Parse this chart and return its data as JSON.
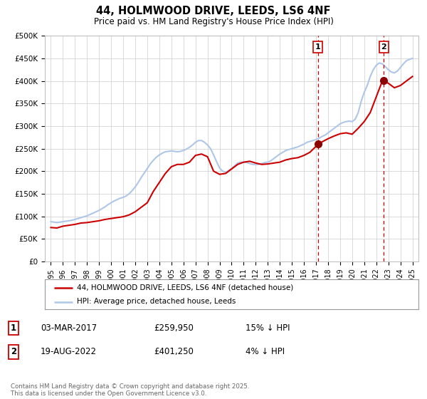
{
  "title": "44, HOLMWOOD DRIVE, LEEDS, LS6 4NF",
  "subtitle": "Price paid vs. HM Land Registry's House Price Index (HPI)",
  "title_fontsize": 10.5,
  "subtitle_fontsize": 8.5,
  "ylim": [
    0,
    500000
  ],
  "yticks": [
    0,
    50000,
    100000,
    150000,
    200000,
    250000,
    300000,
    350000,
    400000,
    450000,
    500000
  ],
  "ytick_labels": [
    "£0",
    "£50K",
    "£100K",
    "£150K",
    "£200K",
    "£250K",
    "£300K",
    "£350K",
    "£400K",
    "£450K",
    "£500K"
  ],
  "xlim_start": 1994.5,
  "xlim_end": 2025.5,
  "xticks": [
    1995,
    1996,
    1997,
    1998,
    1999,
    2000,
    2001,
    2002,
    2003,
    2004,
    2005,
    2006,
    2007,
    2008,
    2009,
    2010,
    2011,
    2012,
    2013,
    2014,
    2015,
    2016,
    2017,
    2018,
    2019,
    2020,
    2021,
    2022,
    2023,
    2024,
    2025
  ],
  "hpi_color": "#aec6e8",
  "price_color": "#cc0000",
  "marker_color": "#8b0000",
  "vline_color": "#cc0000",
  "grid_color": "#cccccc",
  "background_color": "#ffffff",
  "transaction1_date": 2017.16,
  "transaction1_price": 259950,
  "transaction1_label": "1",
  "transaction2_date": 2022.63,
  "transaction2_price": 401250,
  "transaction2_label": "2",
  "legend_line1": "44, HOLMWOOD DRIVE, LEEDS, LS6 4NF (detached house)",
  "legend_line2": "HPI: Average price, detached house, Leeds",
  "table_row1_num": "1",
  "table_row1_date": "03-MAR-2017",
  "table_row1_price": "£259,950",
  "table_row1_hpi": "15% ↓ HPI",
  "table_row2_num": "2",
  "table_row2_date": "19-AUG-2022",
  "table_row2_price": "£401,250",
  "table_row2_hpi": "4% ↓ HPI",
  "footer": "Contains HM Land Registry data © Crown copyright and database right 2025.\nThis data is licensed under the Open Government Licence v3.0.",
  "hpi_data_x": [
    1995.0,
    1995.25,
    1995.5,
    1995.75,
    1996.0,
    1996.25,
    1996.5,
    1996.75,
    1997.0,
    1997.25,
    1997.5,
    1997.75,
    1998.0,
    1998.25,
    1998.5,
    1998.75,
    1999.0,
    1999.25,
    1999.5,
    1999.75,
    2000.0,
    2000.25,
    2000.5,
    2000.75,
    2001.0,
    2001.25,
    2001.5,
    2001.75,
    2002.0,
    2002.25,
    2002.5,
    2002.75,
    2003.0,
    2003.25,
    2003.5,
    2003.75,
    2004.0,
    2004.25,
    2004.5,
    2004.75,
    2005.0,
    2005.25,
    2005.5,
    2005.75,
    2006.0,
    2006.25,
    2006.5,
    2006.75,
    2007.0,
    2007.25,
    2007.5,
    2007.75,
    2008.0,
    2008.25,
    2008.5,
    2008.75,
    2009.0,
    2009.25,
    2009.5,
    2009.75,
    2010.0,
    2010.25,
    2010.5,
    2010.75,
    2011.0,
    2011.25,
    2011.5,
    2011.75,
    2012.0,
    2012.25,
    2012.5,
    2012.75,
    2013.0,
    2013.25,
    2013.5,
    2013.75,
    2014.0,
    2014.25,
    2014.5,
    2014.75,
    2015.0,
    2015.25,
    2015.5,
    2015.75,
    2016.0,
    2016.25,
    2016.5,
    2016.75,
    2017.0,
    2017.25,
    2017.5,
    2017.75,
    2018.0,
    2018.25,
    2018.5,
    2018.75,
    2019.0,
    2019.25,
    2019.5,
    2019.75,
    2020.0,
    2020.25,
    2020.5,
    2020.75,
    2021.0,
    2021.25,
    2021.5,
    2021.75,
    2022.0,
    2022.25,
    2022.5,
    2022.75,
    2023.0,
    2023.25,
    2023.5,
    2023.75,
    2024.0,
    2024.25,
    2024.5,
    2024.75,
    2025.0
  ],
  "hpi_data_y": [
    88000,
    87000,
    86000,
    87000,
    88000,
    89000,
    90000,
    91000,
    93000,
    95000,
    97000,
    99000,
    101000,
    104000,
    107000,
    110000,
    113000,
    117000,
    121000,
    126000,
    130000,
    134000,
    137000,
    140000,
    142000,
    145000,
    150000,
    157000,
    165000,
    175000,
    186000,
    196000,
    206000,
    216000,
    224000,
    231000,
    236000,
    240000,
    243000,
    244000,
    245000,
    244000,
    243000,
    244000,
    246000,
    249000,
    253000,
    258000,
    264000,
    268000,
    268000,
    264000,
    258000,
    250000,
    236000,
    221000,
    207000,
    200000,
    198000,
    201000,
    206000,
    212000,
    218000,
    220000,
    220000,
    219000,
    217000,
    215000,
    215000,
    215000,
    217000,
    219000,
    220000,
    223000,
    228000,
    233000,
    238000,
    242000,
    246000,
    248000,
    250000,
    252000,
    254000,
    257000,
    260000,
    264000,
    266000,
    268000,
    270000,
    273000,
    277000,
    280000,
    285000,
    290000,
    295000,
    300000,
    305000,
    308000,
    310000,
    311000,
    310000,
    315000,
    330000,
    355000,
    375000,
    390000,
    410000,
    425000,
    435000,
    440000,
    438000,
    432000,
    425000,
    420000,
    418000,
    422000,
    430000,
    438000,
    445000,
    448000,
    450000
  ],
  "price_data_x": [
    1995.0,
    1995.5,
    1996.0,
    1996.5,
    1997.0,
    1997.5,
    1998.0,
    1998.5,
    1999.0,
    1999.5,
    2000.0,
    2000.5,
    2001.0,
    2001.5,
    2002.0,
    2002.5,
    2003.0,
    2003.5,
    2004.0,
    2004.5,
    2005.0,
    2005.5,
    2006.0,
    2006.5,
    2007.0,
    2007.5,
    2008.0,
    2008.5,
    2009.0,
    2009.5,
    2010.0,
    2010.5,
    2011.0,
    2011.5,
    2012.0,
    2012.5,
    2013.0,
    2013.5,
    2014.0,
    2014.5,
    2015.0,
    2015.5,
    2016.0,
    2016.5,
    2017.0,
    2017.5,
    2018.0,
    2018.5,
    2019.0,
    2019.5,
    2020.0,
    2020.5,
    2021.0,
    2021.5,
    2022.0,
    2022.5,
    2023.0,
    2023.5,
    2024.0,
    2024.5,
    2025.0
  ],
  "price_data_y": [
    75000,
    74000,
    78000,
    80000,
    82000,
    85000,
    86000,
    88000,
    90000,
    93000,
    95000,
    97000,
    99000,
    103000,
    110000,
    120000,
    130000,
    155000,
    175000,
    195000,
    210000,
    215000,
    215000,
    220000,
    235000,
    238000,
    232000,
    200000,
    193000,
    195000,
    205000,
    215000,
    220000,
    222000,
    218000,
    215000,
    216000,
    218000,
    220000,
    225000,
    228000,
    230000,
    235000,
    242000,
    255000,
    265000,
    272000,
    278000,
    283000,
    285000,
    282000,
    295000,
    310000,
    330000,
    365000,
    400000,
    395000,
    385000,
    390000,
    400000,
    410000
  ]
}
